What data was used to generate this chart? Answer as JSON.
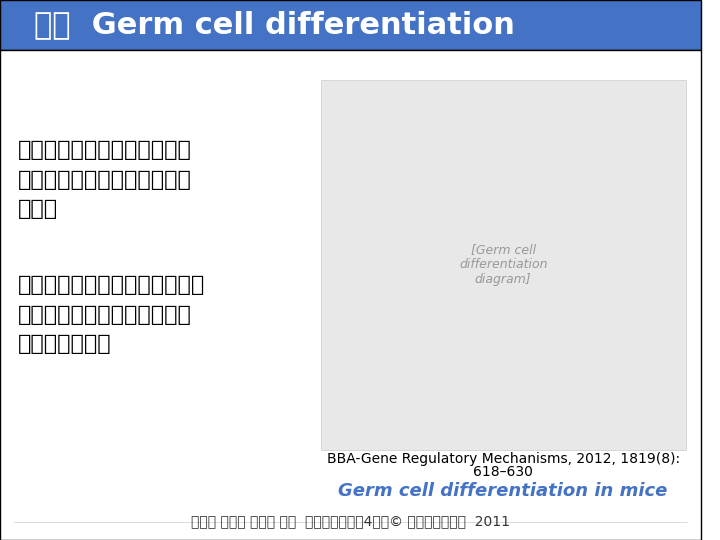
{
  "title": "一、  Germ cell differentiation",
  "header_bg_color": "#4472C4",
  "header_text_color": "#FFFFFF",
  "body_bg_color": "#FFFFFF",
  "text1_line1": "性细胞从体细胞中分化出来，",
  "text1_line2": "被认为是后生动物起源的重要",
  "text1_line3": "标志。",
  "text2_line1": "高度分化的精子卵子一旦结合，",
  "text2_line2": "所有既有分化标记会消失，成",
  "text2_line3": "为新生命起点。",
  "caption1": "BBA-Gene Regulatory Mechanisms, 2012, 1819(8):",
  "caption2": "618–630",
  "caption3": "Germ cell differentiation in mice",
  "footer": "翟中和 王喜忠 丁明孝 主编  细胞生物学（第4版）© 高等教育出版社  2011",
  "footer_color": "#333333",
  "text_color": "#000000",
  "caption3_color": "#4472C4",
  "text_fontsize": 16,
  "caption_fontsize": 10,
  "caption3_fontsize": 13,
  "footer_fontsize": 10,
  "header_fontsize": 22
}
